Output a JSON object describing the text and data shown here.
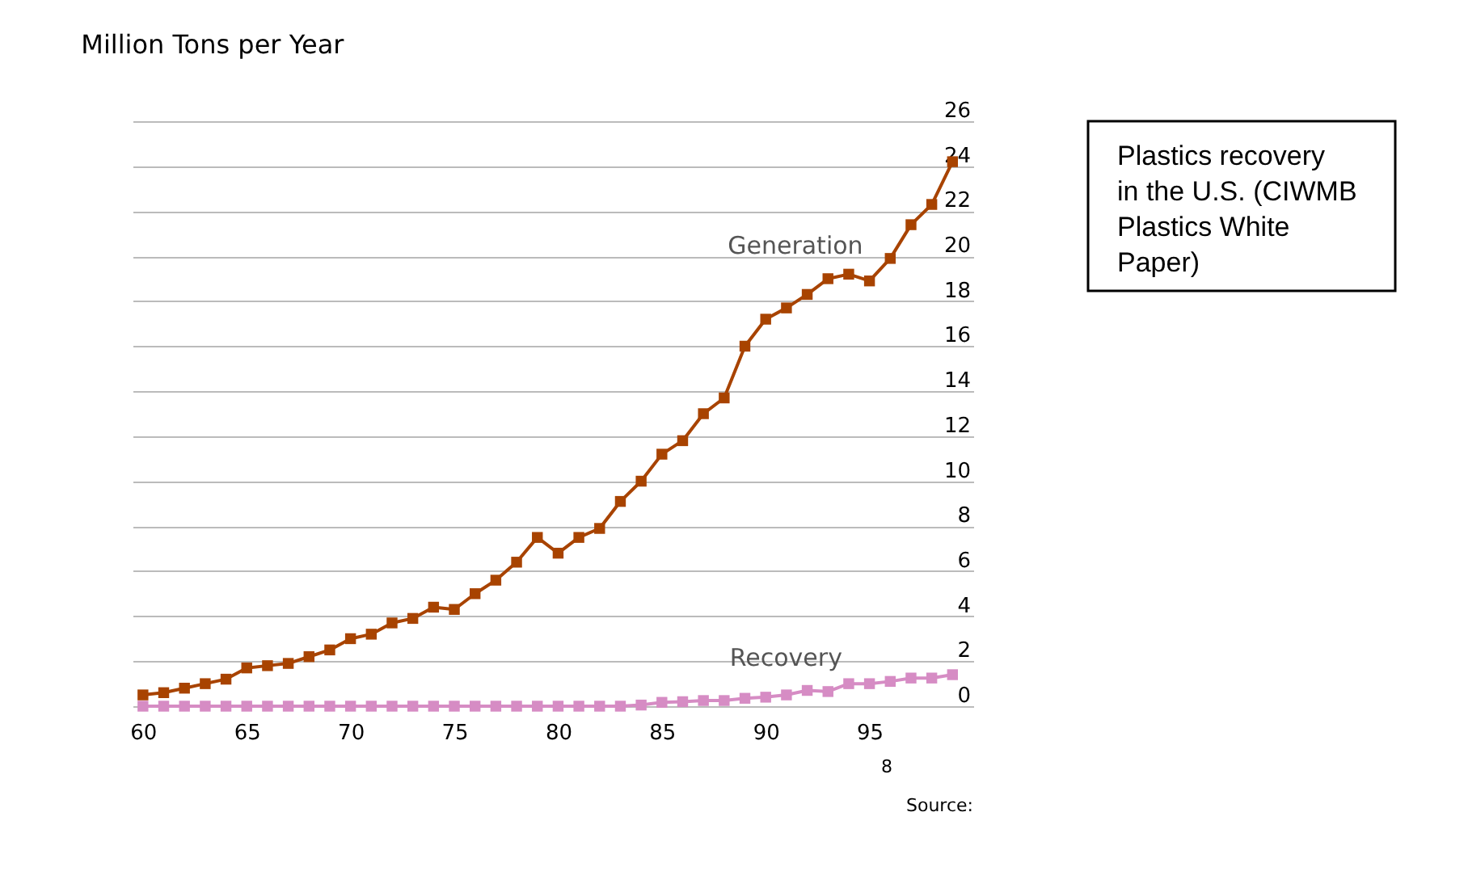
{
  "chart_data": {
    "type": "line",
    "title": "Plastics recovery in the U.S. (CIWMB Plastics White Paper)",
    "ylabel": "Million Tons per Year",
    "x": [
      60,
      61,
      62,
      63,
      64,
      65,
      66,
      67,
      68,
      69,
      70,
      71,
      72,
      73,
      74,
      75,
      76,
      77,
      78,
      79,
      80,
      81,
      82,
      83,
      84,
      85,
      86,
      87,
      88,
      89,
      90,
      91,
      92,
      93,
      94,
      95,
      96,
      97,
      98,
      99
    ],
    "series": [
      {
        "name": "Generation",
        "color": "#a84300",
        "values": [
          0.5,
          0.6,
          0.8,
          1.0,
          1.2,
          1.7,
          1.8,
          1.9,
          2.2,
          2.5,
          3.0,
          3.2,
          3.7,
          3.9,
          4.4,
          4.3,
          5.0,
          5.6,
          6.4,
          7.5,
          6.8,
          7.5,
          7.9,
          9.1,
          10.0,
          11.2,
          11.8,
          13.0,
          13.7,
          16.0,
          17.2,
          17.7,
          18.3,
          19.0,
          19.2,
          18.9,
          19.9,
          21.4,
          22.3,
          24.2
        ]
      },
      {
        "name": "Recovery",
        "color": "#d68cc4",
        "values": [
          0,
          0,
          0,
          0,
          0,
          0,
          0,
          0,
          0,
          0,
          0,
          0,
          0,
          0,
          0,
          0,
          0,
          0,
          0,
          0,
          0,
          0,
          0,
          0,
          0.05,
          0.17,
          0.2,
          0.25,
          0.25,
          0.35,
          0.4,
          0.5,
          0.7,
          0.65,
          1.0,
          1.0,
          1.1,
          1.25,
          1.25,
          1.4
        ]
      }
    ],
    "xlim": [
      59.5,
      100
    ],
    "xticks": [
      60,
      65,
      70,
      75,
      80,
      85,
      90,
      95
    ],
    "ylim": [
      0,
      26
    ],
    "yticks": [
      0,
      2,
      4,
      6,
      8,
      10,
      12,
      14,
      16,
      18,
      20,
      22,
      24,
      26
    ],
    "grid": "y",
    "legend": false,
    "marker": "square",
    "line_style": "solid",
    "annotations": [
      "8",
      "Source:"
    ]
  }
}
